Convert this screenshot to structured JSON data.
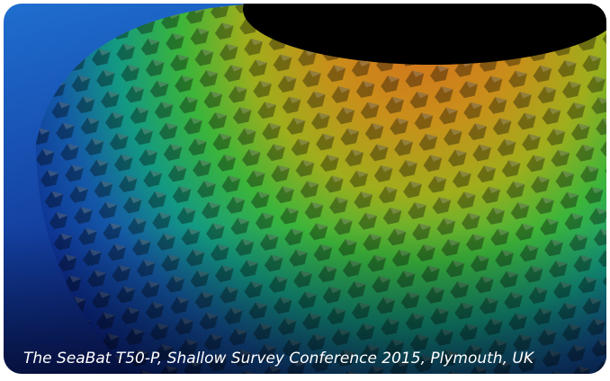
{
  "caption": "The SeaBat T50-P, Shallow Survey Conference 2015, Plymouth, UK"
}
